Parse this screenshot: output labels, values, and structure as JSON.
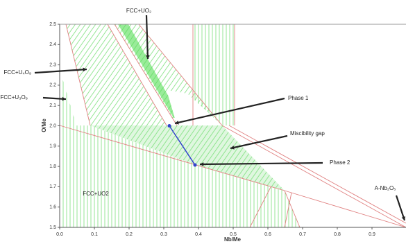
{
  "chart_data": {
    "type": "line",
    "x_label": "Nb/Me",
    "y_label": "O/Me",
    "xlim": [
      0,
      1
    ],
    "ylim": [
      1.5,
      2.5
    ],
    "xticks": [
      {
        "value": 0,
        "label": "0.0"
      },
      0.1,
      0.2,
      0.3,
      0.4,
      0.5,
      0.6,
      0.7,
      0.8,
      0.9
    ],
    "yticks": [
      1.5,
      1.6,
      1.7,
      1.8,
      1.9,
      {
        "value": 2,
        "label": "2.0"
      },
      2.1,
      2.2,
      2.3,
      2.4,
      2.5
    ],
    "x": [
      0.316,
      0.39
    ],
    "series": [
      {
        "name": "Tie line",
        "color": "#3344cc",
        "values": [
          2.0,
          1.807
        ]
      }
    ],
    "annotations": [
      {
        "text": "FCC+UO₂"
      },
      {
        "text": "FCC+U₄O₉"
      },
      {
        "text": "FCC+U₃O₈"
      },
      {
        "text": "Phase 1"
      },
      {
        "text": "Miscibility gap"
      },
      {
        "text": "Phase 2"
      },
      {
        "text": "FCC+UO2"
      },
      {
        "text": "A-Nb₂O₅"
      }
    ]
  }
}
